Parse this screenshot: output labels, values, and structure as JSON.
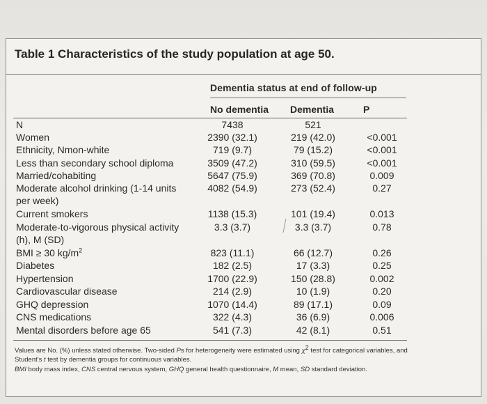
{
  "title": "Table 1 Characteristics of the study population at age 50.",
  "group_header": "Dementia status at end of follow-up",
  "columns": [
    "No dementia",
    "Dementia",
    "P"
  ],
  "rows": [
    {
      "label": "N",
      "no_dementia": "7438",
      "dementia": "521",
      "p": ""
    },
    {
      "label": "Women",
      "no_dementia": "2390 (32.1)",
      "dementia": "219 (42.0)",
      "p": "<0.001"
    },
    {
      "label": "Ethnicity, Nmon-white",
      "no_dementia": "719 (9.7)",
      "dementia": "79 (15.2)",
      "p": "<0.001"
    },
    {
      "label": "Less than secondary school diploma",
      "no_dementia": "3509 (47.2)",
      "dementia": "310 (59.5)",
      "p": "<0.001"
    },
    {
      "label": "Married/cohabiting",
      "no_dementia": "5647 (75.9)",
      "dementia": "369 (70.8)",
      "p": "0.009"
    },
    {
      "label": "Moderate alcohol drinking (1-14 units",
      "label2": "per week)",
      "no_dementia": "4082 (54.9)",
      "dementia": "273 (52.4)",
      "p": "0.27"
    },
    {
      "label": "Current smokers",
      "no_dementia": "1138 (15.3)",
      "dementia": "101 (19.4)",
      "p": "0.013"
    },
    {
      "label": "Moderate-to-vigorous physical activity",
      "label2": "(h), M (SD)",
      "no_dementia": "3.3 (3.7)",
      "dementia": "3.3 (3.7)",
      "p": "0.78"
    },
    {
      "label": "BMI ≥ 30 kg/m",
      "label_sup": "2",
      "no_dementia": "823 (11.1)",
      "dementia": "66 (12.7)",
      "p": "0.26"
    },
    {
      "label": "Diabetes",
      "no_dementia": "182 (2.5)",
      "dementia": "17 (3.3)",
      "p": "0.25"
    },
    {
      "label": "Hypertension",
      "no_dementia": "1700 (22.9)",
      "dementia": "150 (28.8)",
      "p": "0.002"
    },
    {
      "label": "Cardiovascular disease",
      "no_dementia": "214 (2.9)",
      "dementia": "10 (1.9)",
      "p": "0.20"
    },
    {
      "label": "GHQ depression",
      "no_dementia": "1070 (14.4)",
      "dementia": "89 (17.1)",
      "p": "0.09"
    },
    {
      "label": "CNS medications",
      "no_dementia": "322 (4.3)",
      "dementia": "36 (6.9)",
      "p": "0.006"
    },
    {
      "label": "Mental disorders before age 65",
      "no_dementia": "541 (7.3)",
      "dementia": "42 (8.1)",
      "p": "0.51"
    }
  ],
  "footnotes": {
    "line1a": "Values are No. (%) unless stated otherwise. Two-sided ",
    "line1_ps": "P",
    "line1b": "s for heterogeneity were estimated using ",
    "chi": "χ",
    "chi_sup": "2",
    "line1c": " test for categorical variables, and",
    "line2a": "Student's ",
    "line2_t": "t",
    "line2b": " test by dementia groups for continuous variables.",
    "line3_bmi": "BMI",
    "line3a": " body mass index, ",
    "line3_cns": "CNS",
    "line3b": " central nervous system, ",
    "line3_ghq": "GHQ",
    "line3c": " general health questionnaire, ",
    "line3_m": "M",
    "line3d": " mean, ",
    "line3_sd": "SD",
    "line3e": " standard deviation."
  }
}
